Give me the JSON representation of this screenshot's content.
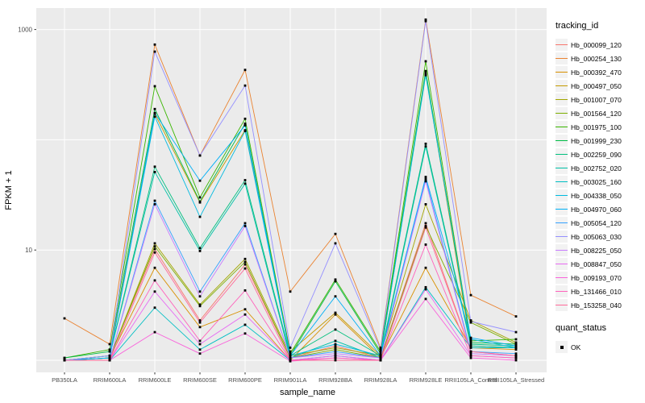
{
  "chart_data": {
    "type": "line",
    "title": "",
    "xlabel": "sample_name",
    "ylabel": "FPKM + 1",
    "y_scale": "log10",
    "ylim": [
      0.8,
      1900
    ],
    "grid": true,
    "panel_bg": "#EBEBEB",
    "grid_color": "#FFFFFF",
    "tick_label_color": "#4D4D4D",
    "point_color": "#000000",
    "y_ticks": [
      {
        "label": "1000",
        "value": 1000
      },
      {
        "label": "10",
        "value": 10
      }
    ],
    "y_gridlines": [
      1,
      10,
      100,
      1000
    ],
    "categories": [
      "PB350LA",
      "RRIM600LA",
      "RRIM600LE",
      "RRIM600SE",
      "RRIM600PE",
      "RRIM901LA",
      "RRIM928BA",
      "RRIM928LA",
      "RRIM928LE",
      "RRII105LA_Control",
      "RRII105LA_Stressed"
    ],
    "legend_position": "right",
    "legend": {
      "tracking_title": "tracking_id",
      "quant_title": "quant_status",
      "quant_items": [
        {
          "label": "OK"
        }
      ]
    },
    "series": [
      {
        "name": "Hb_000099_120",
        "color": "#F8766D",
        "values": [
          1.0,
          1.05,
          10.2,
          2.3,
          7.4,
          1.05,
          1.35,
          1.05,
          17.5,
          1.2,
          1.1
        ]
      },
      {
        "name": "Hb_000254_130",
        "color": "#EA8331",
        "values": [
          2.4,
          1.4,
          730,
          72,
          430,
          4.2,
          14,
          1.3,
          1230,
          3.9,
          2.5
        ]
      },
      {
        "name": "Hb_000392_470",
        "color": "#D89000",
        "values": [
          1.0,
          1.05,
          6.9,
          2.0,
          2.9,
          1.0,
          2.6,
          1.05,
          6.9,
          1.3,
          1.25
        ]
      },
      {
        "name": "Hb_000497_050",
        "color": "#C49A00",
        "values": [
          1.0,
          1.1,
          172,
          27,
          122,
          1.2,
          2.7,
          1.1,
          400,
          1.35,
          1.3
        ]
      },
      {
        "name": "Hb_001007_070",
        "color": "#A3A500",
        "values": [
          1.0,
          1.05,
          11.5,
          3.2,
          8.3,
          1.1,
          1.3,
          1.1,
          26,
          2.3,
          1.45
        ]
      },
      {
        "name": "Hb_001564_120",
        "color": "#7CAE00",
        "values": [
          1.0,
          1.05,
          10.8,
          3.1,
          7.8,
          1.05,
          1.25,
          1.05,
          16.5,
          2.2,
          1.4
        ]
      },
      {
        "name": "Hb_001975_100",
        "color": "#39B600",
        "values": [
          1.05,
          1.25,
          306,
          30,
          155,
          1.15,
          5.4,
          1.2,
          515,
          1.5,
          1.55
        ]
      },
      {
        "name": "Hb_001999_230",
        "color": "#00BB45",
        "values": [
          1.05,
          1.2,
          190,
          27.5,
          140,
          1.1,
          5.2,
          1.15,
          420,
          1.45,
          1.4
        ]
      },
      {
        "name": "Hb_002259_090",
        "color": "#00BF7D",
        "values": [
          1.0,
          1.1,
          57,
          10.4,
          43,
          1.1,
          1.9,
          1.1,
          92,
          1.4,
          1.35
        ]
      },
      {
        "name": "Hb_002752_020",
        "color": "#00C0A7",
        "values": [
          1.0,
          1.1,
          51,
          9.8,
          40,
          1.05,
          1.5,
          1.05,
          87,
          1.35,
          1.3
        ]
      },
      {
        "name": "Hb_003025_160",
        "color": "#00BFC4",
        "values": [
          1.0,
          1.0,
          3.0,
          1.25,
          2.1,
          1.0,
          1.1,
          1.0,
          4.6,
          1.3,
          1.3
        ]
      },
      {
        "name": "Hb_004338_050",
        "color": "#00BAE0",
        "values": [
          1.0,
          1.05,
          162,
          20,
          120,
          1.1,
          1.4,
          1.1,
          385,
          1.55,
          1.3
        ]
      },
      {
        "name": "Hb_004970_060",
        "color": "#00B0F6",
        "values": [
          1.0,
          1.05,
          175,
          42.5,
          135,
          1.1,
          3.8,
          1.1,
          46,
          1.6,
          1.35
        ]
      },
      {
        "name": "Hb_005054_120",
        "color": "#35A2FF",
        "values": [
          1.0,
          1.0,
          28,
          4.2,
          17.5,
          1.05,
          1.2,
          1.05,
          44,
          1.2,
          1.15
        ]
      },
      {
        "name": "Hb_005063_030",
        "color": "#9590FF",
        "values": [
          1.0,
          1.1,
          630,
          72,
          310,
          1.3,
          11.5,
          1.25,
          1190,
          2.25,
          1.8
        ]
      },
      {
        "name": "Hb_008225_050",
        "color": "#C77CFF",
        "values": [
          1.0,
          1.0,
          26,
          3.8,
          16.5,
          1.05,
          1.15,
          1.05,
          42,
          1.15,
          1.1
        ]
      },
      {
        "name": "Hb_008847_050",
        "color": "#E76BF3",
        "values": [
          1.0,
          1.0,
          4.2,
          1.4,
          2.6,
          1.0,
          1.1,
          1.0,
          4.4,
          1.1,
          1.05
        ]
      },
      {
        "name": "Hb_009193_070",
        "color": "#FA62DB",
        "values": [
          1.0,
          1.0,
          1.8,
          1.15,
          1.75,
          0.98,
          1.05,
          1.0,
          3.6,
          1.05,
          1.0
        ]
      },
      {
        "name": "Hb_131466_010",
        "color": "#FF62BC",
        "values": [
          1.0,
          1.0,
          5.3,
          1.5,
          4.3,
          1.0,
          1.05,
          1.0,
          11.2,
          1.1,
          1.05
        ]
      },
      {
        "name": "Hb_153258_040",
        "color": "#FF6A9A",
        "values": [
          1.0,
          1.0,
          9.5,
          2.2,
          6.8,
          1.0,
          1.0,
          1.0,
          16,
          1.2,
          1.1
        ]
      }
    ]
  }
}
